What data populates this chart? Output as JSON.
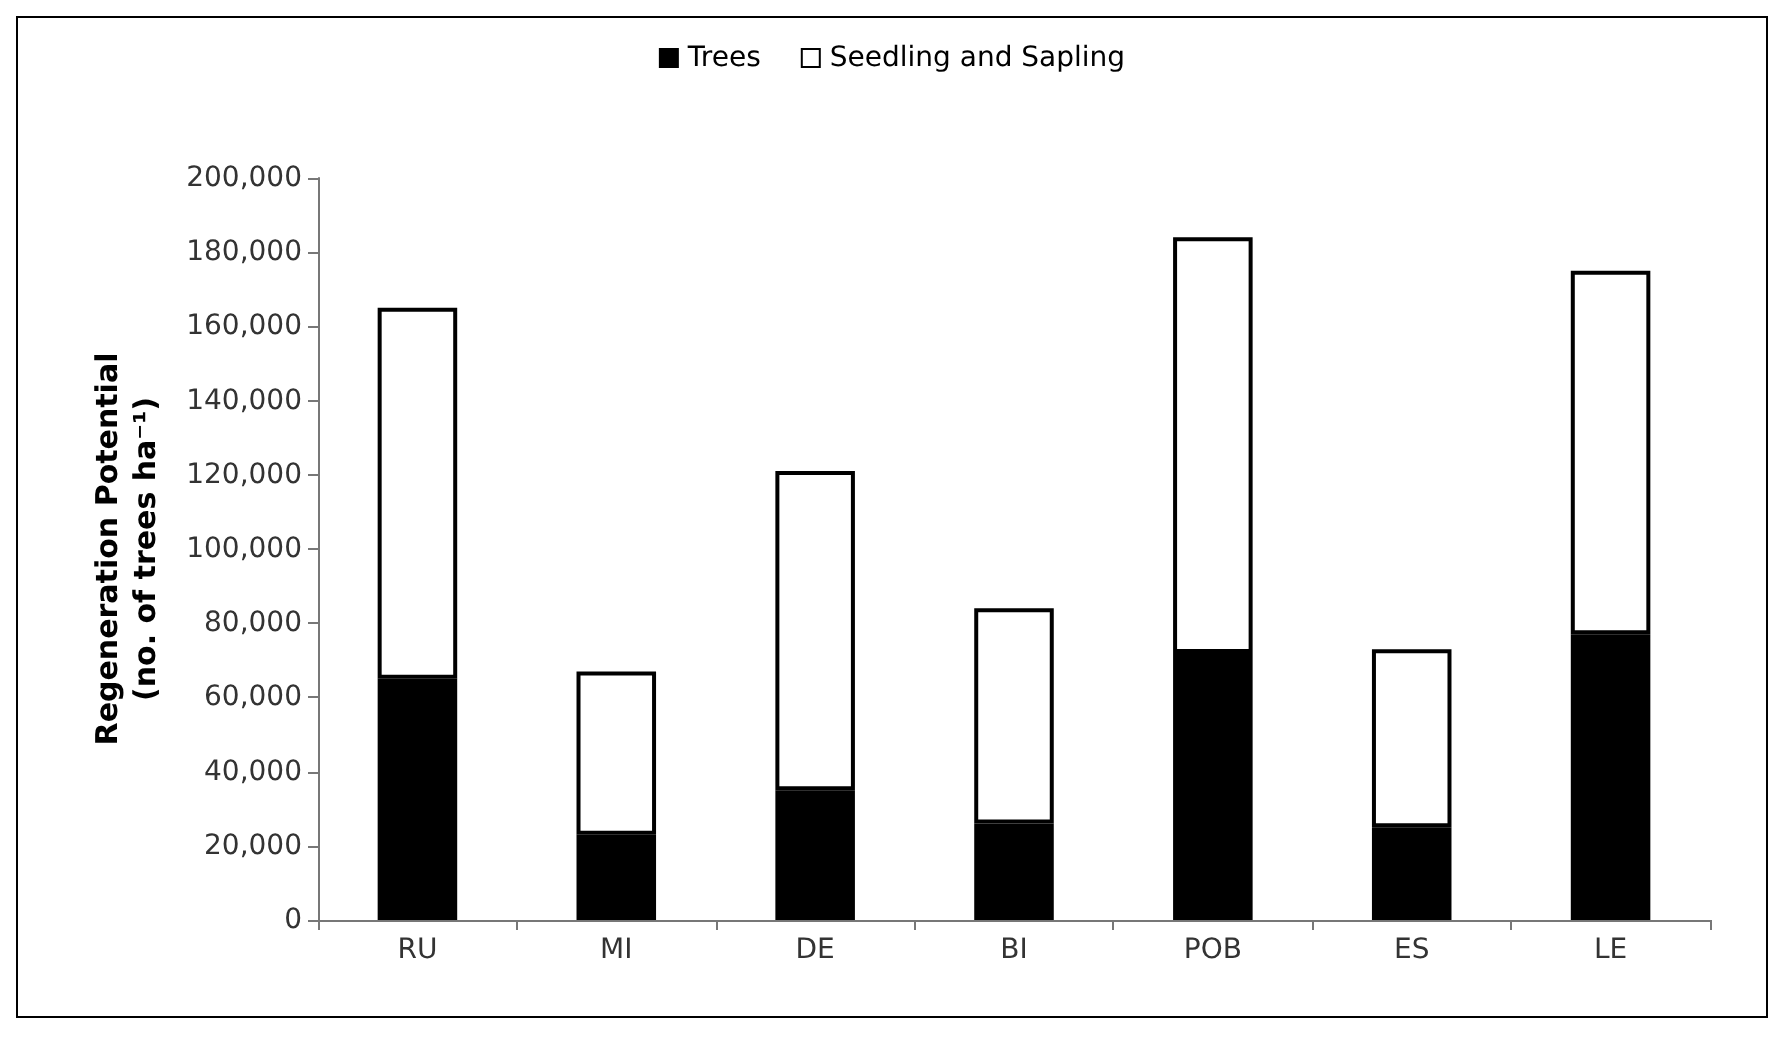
{
  "chart_data": {
    "type": "bar",
    "stacked": true,
    "ylabel": "Regeneration Potential\n(no. of trees ha⁻¹)",
    "categories": [
      "RU",
      "MI",
      "DE",
      "BI",
      "POB",
      "ES",
      "LE"
    ],
    "series": [
      {
        "name": "Trees",
        "color": "#000000",
        "values": [
          65000,
          23000,
          35000,
          26000,
          72000,
          25000,
          77000
        ]
      },
      {
        "name": "Seedling and Sapling",
        "color": "#ffffff",
        "values": [
          100000,
          44000,
          86000,
          58000,
          112000,
          48000,
          98000
        ]
      }
    ],
    "ylim": [
      0,
      200000
    ],
    "yticks": [
      {
        "value": 0,
        "label": "0"
      },
      {
        "value": 20000,
        "label": "20,000"
      },
      {
        "value": 40000,
        "label": "40,000"
      },
      {
        "value": 60000,
        "label": "60,000"
      },
      {
        "value": 80000,
        "label": "80,000"
      },
      {
        "value": 100000,
        "label": "100,000"
      },
      {
        "value": 120000,
        "label": "120,000"
      },
      {
        "value": 140000,
        "label": "140,000"
      },
      {
        "value": 160000,
        "label": "160,000"
      },
      {
        "value": 180000,
        "label": "180,000"
      },
      {
        "value": 200000,
        "label": "200,000"
      }
    ],
    "grid": false,
    "legend": "top"
  }
}
